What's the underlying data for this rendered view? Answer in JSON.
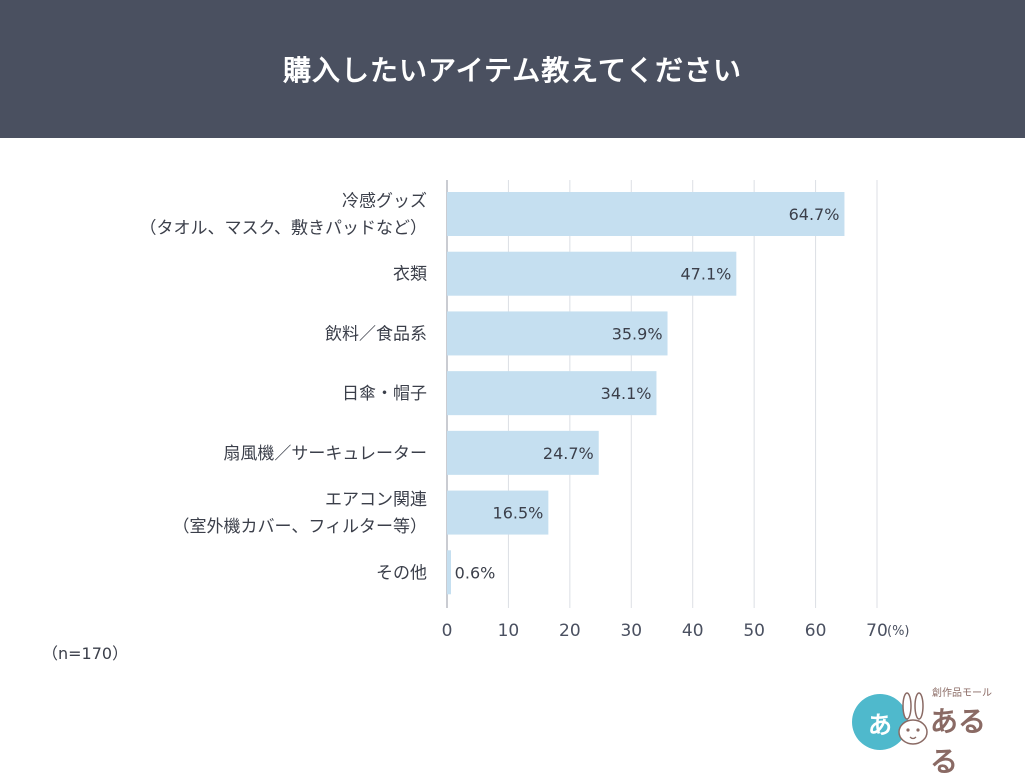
{
  "header": {
    "title": "購入したいアイテム教えてください"
  },
  "chart_data": {
    "type": "bar",
    "orientation": "horizontal",
    "categories": [
      [
        "冷感グッズ",
        "（タオル、マスク、敷きパッドなど）"
      ],
      [
        "衣類"
      ],
      [
        "飲料／食品系"
      ],
      [
        "日傘・帽子"
      ],
      [
        "扇風機／サーキュレーター"
      ],
      [
        "エアコン関連",
        "（室外機カバー、フィルター等）"
      ],
      [
        "その他"
      ]
    ],
    "values": [
      64.7,
      47.1,
      35.9,
      34.1,
      24.7,
      16.5,
      0.6
    ],
    "value_labels": [
      "64.7%",
      "47.1%",
      "35.9%",
      "34.1%",
      "24.7%",
      "16.5%",
      "0.6%"
    ],
    "xlim": [
      0,
      70
    ],
    "xticks": [
      "0",
      "10",
      "20",
      "30",
      "40",
      "50",
      "60",
      "70"
    ],
    "unit": "(%)",
    "grid": "vertical",
    "bar_color": "#c5dff0"
  },
  "note": "（n=170）",
  "logo": {
    "text": "あるる",
    "subtext": "創作品モール",
    "mark": "あ"
  }
}
